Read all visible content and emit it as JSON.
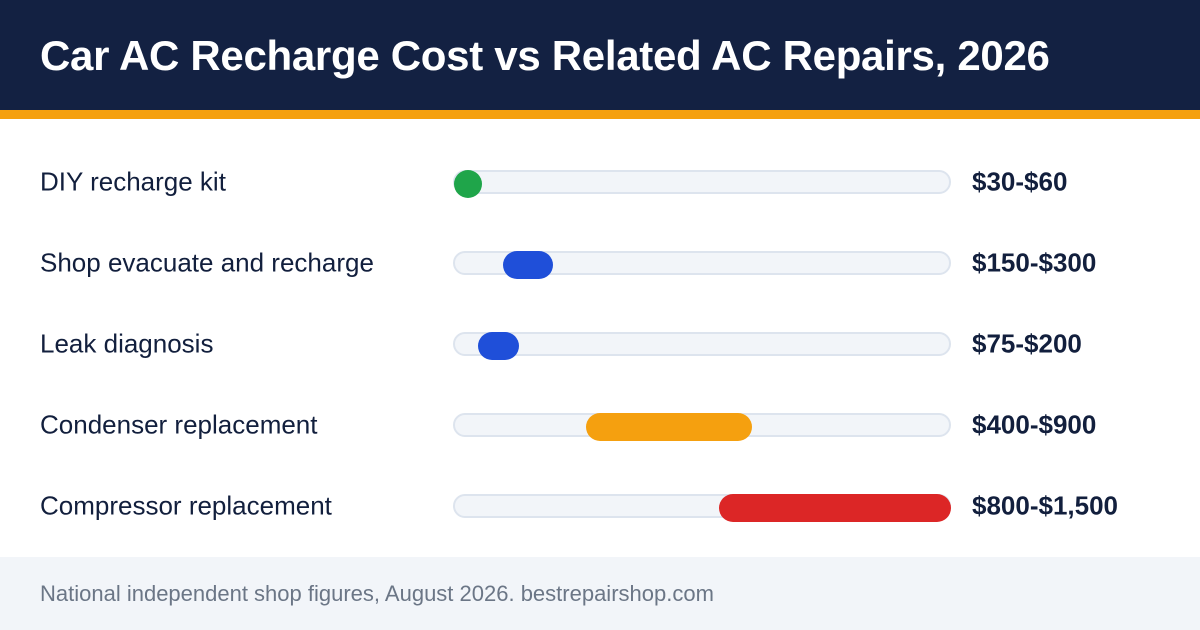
{
  "header": {
    "title": "Car AC Recharge Cost vs Related AC Repairs, 2026"
  },
  "chart_data": {
    "type": "bar",
    "subtype": "range",
    "title": "Car AC Recharge Cost vs Related AC Repairs, 2026",
    "xlim": [
      0,
      1500
    ],
    "grid": false,
    "categories": [
      "DIY recharge kit",
      "Shop evacuate and recharge",
      "Leak diagnosis",
      "Condenser replacement",
      "Compressor replacement"
    ],
    "rows": [
      {
        "label": "DIY recharge kit",
        "low": 30,
        "high": 60,
        "value_label": "$30-$60",
        "color": "#1fa54a"
      },
      {
        "label": "Shop evacuate and recharge",
        "low": 150,
        "high": 300,
        "value_label": "$150-$300",
        "color": "#1f4fd9"
      },
      {
        "label": "Leak diagnosis",
        "low": 75,
        "high": 200,
        "value_label": "$75-$200",
        "color": "#1f4fd9"
      },
      {
        "label": "Condenser replacement",
        "low": 400,
        "high": 900,
        "value_label": "$400-$900",
        "color": "#f5a00f"
      },
      {
        "label": "Compressor replacement",
        "low": 800,
        "high": 1500,
        "value_label": "$800-$1,500",
        "color": "#dc2626"
      }
    ]
  },
  "footer": {
    "text": "National independent shop figures, August 2026. bestrepairshop.com"
  },
  "colors": {
    "header_bg": "#132142",
    "accent": "#f5a00f",
    "track": "#f2f5f9",
    "footer_bg": "#f2f5f9"
  }
}
